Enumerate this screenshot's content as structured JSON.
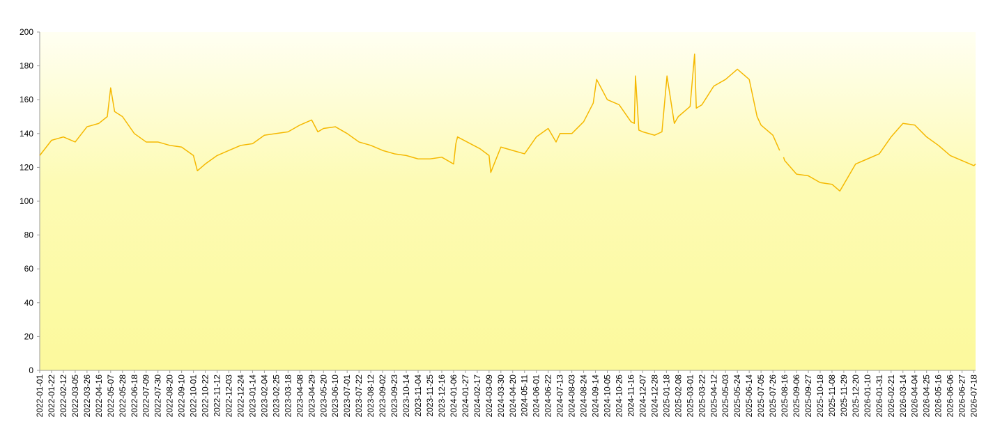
{
  "chart_data": {
    "type": "line",
    "color": "#f5b800",
    "x": [
      "2022-01-01",
      "2022-01-22",
      "2022-02-12",
      "2022-03-05",
      "2022-03-26",
      "2022-04-16",
      "2022-05-01",
      "2022-05-07",
      "2022-05-14",
      "2022-05-28",
      "2022-06-18",
      "2022-07-09",
      "2022-07-30",
      "2022-08-20",
      "2022-09-10",
      "2022-10-01",
      "2022-10-08",
      "2022-10-22",
      "2022-11-12",
      "2022-12-03",
      "2022-12-24",
      "2023-01-14",
      "2023-02-04",
      "2023-02-25",
      "2023-03-18",
      "2023-04-08",
      "2023-04-29",
      "2023-05-10",
      "2023-05-20",
      "2023-06-10",
      "2023-07-01",
      "2023-07-22",
      "2023-08-12",
      "2023-09-02",
      "2023-09-23",
      "2023-10-14",
      "2023-11-04",
      "2023-11-25",
      "2023-12-16",
      "2024-01-06",
      "2024-01-10",
      "2024-01-13",
      "2024-02-22",
      "2024-03-09",
      "2024-03-12",
      "2024-03-30",
      "2024-04-20",
      "2024-05-11",
      "2024-06-01",
      "2024-06-22",
      "2024-07-06",
      "2024-07-13",
      "2024-08-03",
      "2024-08-24",
      "2024-09-10",
      "2024-09-16",
      "2024-10-05",
      "2024-10-26",
      "2024-11-16",
      "2024-11-22",
      "2024-11-24",
      "2024-11-30",
      "2024-12-07",
      "2024-12-28",
      "2025-01-10",
      "2025-01-19",
      "2025-02-01",
      "2025-02-08",
      "2025-03-01",
      "2025-03-09",
      "2025-03-12",
      "2025-03-22",
      "2025-04-12",
      "2025-05-03",
      "2025-05-24",
      "2025-06-14",
      "2025-06-28",
      "2025-07-05",
      "2025-07-26",
      "2025-08-07",
      "2025-08-10",
      "2025-08-14",
      "2025-08-16",
      "2025-09-06",
      "2025-09-27",
      "2025-10-18",
      "2025-11-08",
      "2025-11-22",
      "2025-12-06",
      "2025-12-20",
      "2026-01-10",
      "2026-01-31",
      "2026-02-21",
      "2026-03-14",
      "2026-04-04",
      "2026-04-25",
      "2026-05-16",
      "2026-06-06",
      "2026-06-27",
      "2026-07-18",
      "2026-07-21"
    ],
    "values": [
      127,
      136,
      138,
      135,
      144,
      146,
      150,
      167,
      153,
      150,
      140,
      135,
      135,
      133,
      132,
      127,
      118,
      122,
      127,
      130,
      133,
      134,
      139,
      140,
      141,
      145,
      148,
      141,
      143,
      144,
      140,
      135,
      133,
      130,
      128,
      127,
      125,
      125,
      126,
      122,
      134,
      138,
      131,
      127,
      117,
      132,
      130,
      128,
      138,
      143,
      135,
      140,
      140,
      147,
      158,
      172,
      160,
      157,
      147,
      146,
      174,
      142,
      141,
      139,
      141,
      174,
      146,
      150,
      156,
      187,
      155,
      157,
      168,
      172,
      178,
      172,
      150,
      145,
      139,
      130,
      null,
      126,
      124,
      116,
      115,
      111,
      110,
      106,
      114,
      122,
      125,
      128,
      138,
      146,
      145,
      138,
      133,
      127,
      124,
      121,
      122
    ],
    "xlim": [
      "2022-01-01",
      "2026-07-21"
    ],
    "xticks": [
      "2022-01-01",
      "2022-01-22",
      "2022-02-12",
      "2022-03-05",
      "2022-03-26",
      "2022-04-16",
      "2022-05-07",
      "2022-05-28",
      "2022-06-18",
      "2022-07-09",
      "2022-07-30",
      "2022-08-20",
      "2022-09-10",
      "2022-10-01",
      "2022-10-22",
      "2022-11-12",
      "2022-12-03",
      "2022-12-24",
      "2023-01-14",
      "2023-02-04",
      "2023-02-25",
      "2023-03-18",
      "2023-04-08",
      "2023-04-29",
      "2023-05-20",
      "2023-06-10",
      "2023-07-01",
      "2023-07-22",
      "2023-08-12",
      "2023-09-02",
      "2023-09-23",
      "2023-10-14",
      "2023-11-04",
      "2023-11-25",
      "2023-12-16",
      "2024-01-06",
      "2024-01-27",
      "2024-02-17",
      "2024-03-09",
      "2024-03-30",
      "2024-04-20",
      "2024-05-11",
      "2024-06-01",
      "2024-06-22",
      "2024-07-13",
      "2024-08-03",
      "2024-08-24",
      "2024-09-14",
      "2024-10-05",
      "2024-10-26",
      "2024-11-16",
      "2024-12-07",
      "2024-12-28",
      "2025-01-18",
      "2025-02-08",
      "2025-03-01",
      "2025-03-22",
      "2025-04-12",
      "2025-05-03",
      "2025-05-24",
      "2025-06-14",
      "2025-07-05",
      "2025-07-26",
      "2025-08-16",
      "2025-09-06",
      "2025-09-27",
      "2025-10-18",
      "2025-11-08",
      "2025-11-29",
      "2025-12-20",
      "2026-01-10",
      "2026-01-31",
      "2026-02-21",
      "2026-03-14",
      "2026-04-04",
      "2026-04-25",
      "2026-05-16",
      "2026-06-06",
      "2026-06-27",
      "2026-07-18"
    ],
    "ylim": [
      0,
      200
    ],
    "yticks": [
      0,
      20,
      40,
      60,
      80,
      100,
      120,
      140,
      160,
      180,
      200
    ]
  }
}
